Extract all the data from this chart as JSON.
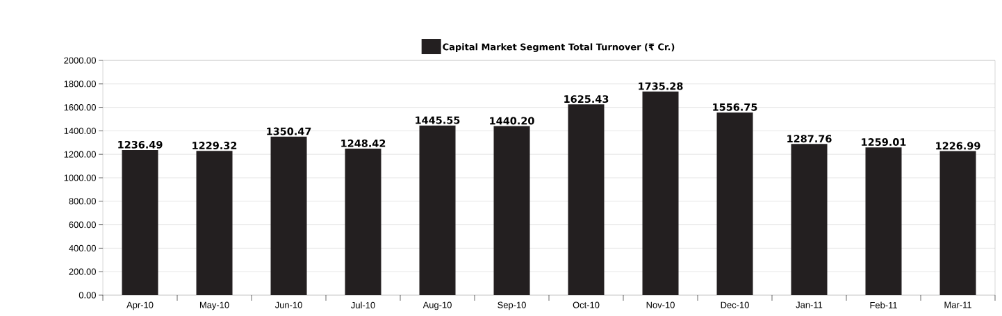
{
  "chart_data": {
    "type": "bar",
    "categories": [
      "Apr-10",
      "May-10",
      "Jun-10",
      "Jul-10",
      "Aug-10",
      "Sep-10",
      "Oct-10",
      "Nov-10",
      "Dec-10",
      "Jan-11",
      "Feb-11",
      "Mar-11"
    ],
    "series": [
      {
        "name": "Capital Market Segment Total Turnover (₹ Cr.)",
        "color": "#231f20",
        "values": [
          1236.49,
          1229.32,
          1350.47,
          1248.42,
          1445.55,
          1440.2,
          1625.43,
          1735.28,
          1556.75,
          1287.76,
          1259.01,
          1226.99
        ],
        "value_labels": [
          "1236.49",
          "1229.32",
          "1350.47",
          "1248.42",
          "1445.55",
          "1440.20",
          "1625.43",
          "1735.28",
          "1556.75",
          "1287.76",
          "1259.01",
          "1226.99"
        ]
      }
    ],
    "ylim": [
      0,
      2000
    ],
    "yticks": [
      {
        "value": 0,
        "label": "0.00"
      },
      {
        "value": 200,
        "label": "200.00"
      },
      {
        "value": 400,
        "label": "400.00"
      },
      {
        "value": 600,
        "label": "600.00"
      },
      {
        "value": 800,
        "label": "800.00"
      },
      {
        "value": 1000,
        "label": "1000.00"
      },
      {
        "value": 1200,
        "label": "1200.00"
      },
      {
        "value": 1400,
        "label": "1400.00"
      },
      {
        "value": 1600,
        "label": "1600.00"
      },
      {
        "value": 1800,
        "label": "1800.00"
      },
      {
        "value": 2000,
        "label": "2000.00"
      }
    ],
    "grid": "y",
    "legend": "top"
  }
}
